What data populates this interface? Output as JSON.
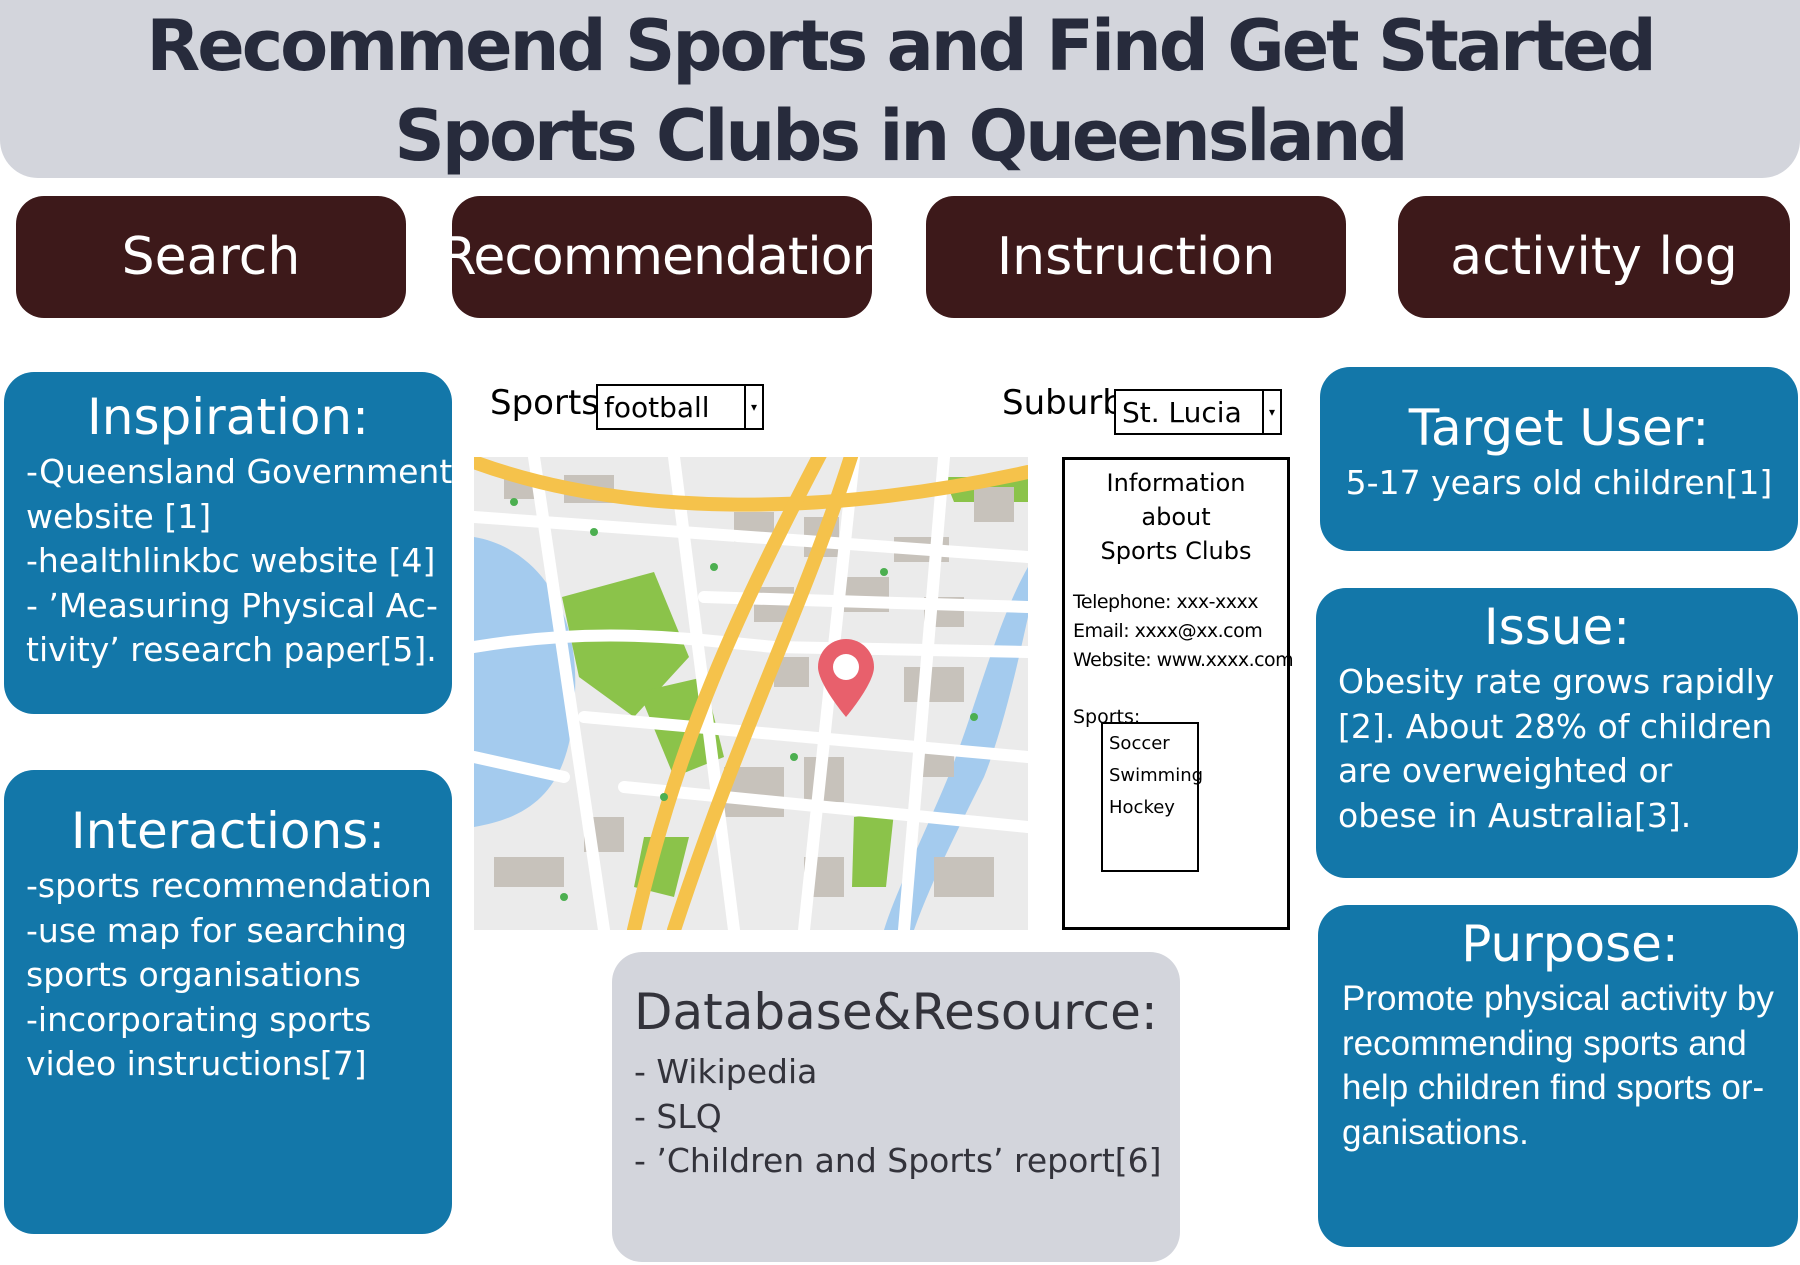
{
  "header": {
    "title_line1": "Recommend Sports and Find Get Started",
    "title_line2": "Sports Clubs in Queensland"
  },
  "nav": {
    "search": "Search",
    "recommendation": "Recommendation",
    "instruction": "Instruction",
    "activity_log": "activity log"
  },
  "inspiration": {
    "title": "Inspiration:",
    "lines": [
      "-Queensland Government",
      "website [1]",
      "-healthlinkbc website [4]",
      "- ’Measuring Physical Ac-",
      "tivity’ research paper[5]."
    ]
  },
  "interactions": {
    "title": "Interactions:",
    "lines": [
      "-sports recommendation",
      "-use map for searching",
      "sports organisations",
      "-incorporating sports",
      "video instructions[7]"
    ]
  },
  "filters": {
    "sports_label": "Sports",
    "sports_value": "football",
    "suburb_label": "Suburb",
    "suburb_value": "St. Lucia"
  },
  "info_card": {
    "title_line1": "Information about",
    "title_line2": "Sports Clubs",
    "telephone": "Telephone: xxx-xxxx",
    "email": "Email: xxxx@xx.com",
    "website": "Website: www.xxxx.com",
    "sports_label": "Sports:",
    "sports": [
      "Soccer",
      "Swimming",
      "Hockey"
    ]
  },
  "database": {
    "title": "Database&Resource:",
    "lines": [
      "- Wikipedia",
      "- SLQ",
      "- ’Children and Sports’ report[6]"
    ]
  },
  "target_user": {
    "title": "Target User:",
    "lines": [
      "5-17 years old children[1]"
    ]
  },
  "issue": {
    "title": "Issue:",
    "lines": [
      "Obesity rate grows rapidly",
      "[2]. About 28% of children",
      "are overweighted or",
      "obese in Australia[3]."
    ]
  },
  "purpose": {
    "title": "Purpose:",
    "lines": [
      "Promote physical activity by",
      "recommending sports and",
      "help children find sports or-",
      "ganisations."
    ]
  },
  "colors": {
    "header_bg": "#d3d5dc",
    "nav_bg": "#3d191a",
    "panel_bg": "#1377a9",
    "map_road_major": "#f5c24b",
    "map_park": "#8bc34a",
    "map_water": "#a4cbee",
    "map_pin": "#e8606c"
  }
}
